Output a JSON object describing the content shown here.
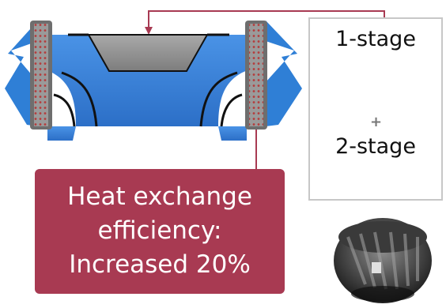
{
  "comparison_panel": {
    "stage1_label": "1-stage",
    "plus_sign": "+",
    "stage2_label": "2-stage"
  },
  "callout": {
    "line1": "Heat exchange",
    "line2": "efficiency:",
    "line3": "Increased 20%"
  },
  "colors": {
    "air_blue": "#2f7fd6",
    "duct_blue": "#3c83d6",
    "frame_gray": "#8c8c8c",
    "connector_red": "#a83a52",
    "callout_bg": "#a83a52",
    "panel_border": "#c7c7c7"
  }
}
